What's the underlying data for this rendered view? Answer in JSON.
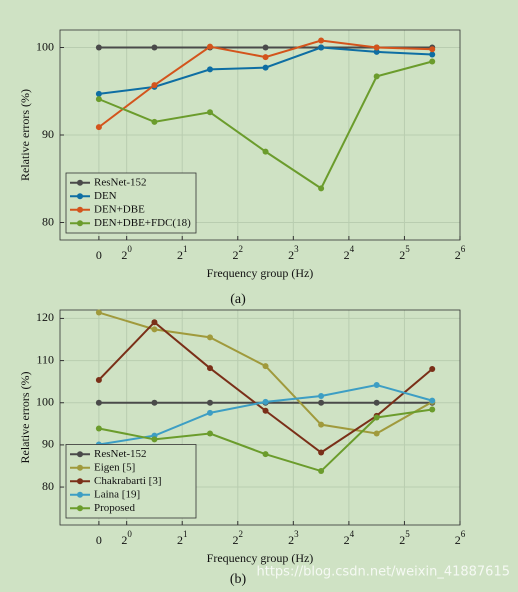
{
  "chart_data": [
    {
      "type": "line",
      "caption": "(a)",
      "xlabel": "Frequency group (Hz)",
      "ylabel": "Relative errors (%)",
      "x": [
        -0.5,
        0.5,
        1.5,
        2.5,
        3.5,
        4.5,
        5.5
      ],
      "xlim": [
        -1.2,
        6
      ],
      "xticks": [
        {
          "value": -0.5,
          "label": "0"
        },
        {
          "value": 0,
          "label": "2",
          "exponent": "0"
        },
        {
          "value": 1,
          "label": "2",
          "exponent": "1"
        },
        {
          "value": 2,
          "label": "2",
          "exponent": "2"
        },
        {
          "value": 3,
          "label": "2",
          "exponent": "3"
        },
        {
          "value": 4,
          "label": "2",
          "exponent": "4"
        },
        {
          "value": 5,
          "label": "2",
          "exponent": "5"
        },
        {
          "value": 6,
          "label": "2",
          "exponent": "6"
        }
      ],
      "ylim": [
        78,
        102
      ],
      "yticks": [
        80,
        90,
        100
      ],
      "grid": true,
      "legend": "lower left",
      "series": [
        {
          "name": "ResNet-152",
          "color": "#4a4a4a",
          "values": [
            100,
            100,
            100,
            100,
            100,
            100,
            100
          ]
        },
        {
          "name": "DEN",
          "color": "#0e6ea3",
          "values": [
            94.7,
            95.5,
            97.5,
            97.7,
            100,
            99.5,
            99.2
          ]
        },
        {
          "name": "DEN+DBE",
          "color": "#d3541c",
          "values": [
            90.9,
            95.7,
            100.1,
            98.9,
            100.8,
            100,
            99.8
          ]
        },
        {
          "name": "DEN+DBE+FDC(18)",
          "color": "#6b9c2c",
          "values": [
            94.1,
            91.5,
            92.6,
            88.1,
            83.9,
            96.7,
            98.4
          ]
        }
      ]
    },
    {
      "type": "line",
      "caption": "(b)",
      "xlabel": "Frequency group (Hz)",
      "ylabel": "Relative errors (%)",
      "x": [
        -0.5,
        0.5,
        1.5,
        2.5,
        3.5,
        4.5,
        5.5
      ],
      "xlim": [
        -1.2,
        6
      ],
      "xticks": [
        {
          "value": -0.5,
          "label": "0"
        },
        {
          "value": 0,
          "label": "2",
          "exponent": "0"
        },
        {
          "value": 1,
          "label": "2",
          "exponent": "1"
        },
        {
          "value": 2,
          "label": "2",
          "exponent": "2"
        },
        {
          "value": 3,
          "label": "2",
          "exponent": "3"
        },
        {
          "value": 4,
          "label": "2",
          "exponent": "4"
        },
        {
          "value": 5,
          "label": "2",
          "exponent": "5"
        },
        {
          "value": 6,
          "label": "2",
          "exponent": "6"
        }
      ],
      "ylim": [
        71,
        122
      ],
      "yticks": [
        80,
        90,
        100,
        110,
        120
      ],
      "grid": true,
      "legend": "lower left",
      "series": [
        {
          "name": "ResNet-152",
          "color": "#4a4a4a",
          "values": [
            100,
            100,
            100,
            100,
            100,
            100,
            100
          ]
        },
        {
          "name": "Eigen [5]",
          "color": "#a09a3c",
          "values": [
            121.4,
            117.4,
            115.5,
            108.7,
            94.8,
            92.7,
            100.2
          ]
        },
        {
          "name": "Chakrabarti [3]",
          "color": "#7a2f18",
          "values": [
            105.4,
            119.1,
            108.2,
            98.1,
            88.2,
            96.9,
            108
          ]
        },
        {
          "name": "Laina [19]",
          "color": "#3d9ec4",
          "values": [
            90.1,
            92.2,
            97.6,
            100.2,
            101.6,
            104.2,
            100.5
          ]
        },
        {
          "name": "Proposed",
          "color": "#6b9c2c",
          "values": [
            93.9,
            91.3,
            92.7,
            87.8,
            83.8,
            96.5,
            98.4
          ]
        }
      ]
    }
  ],
  "watermark": "https://blog.csdn.net/weixin_41887615"
}
